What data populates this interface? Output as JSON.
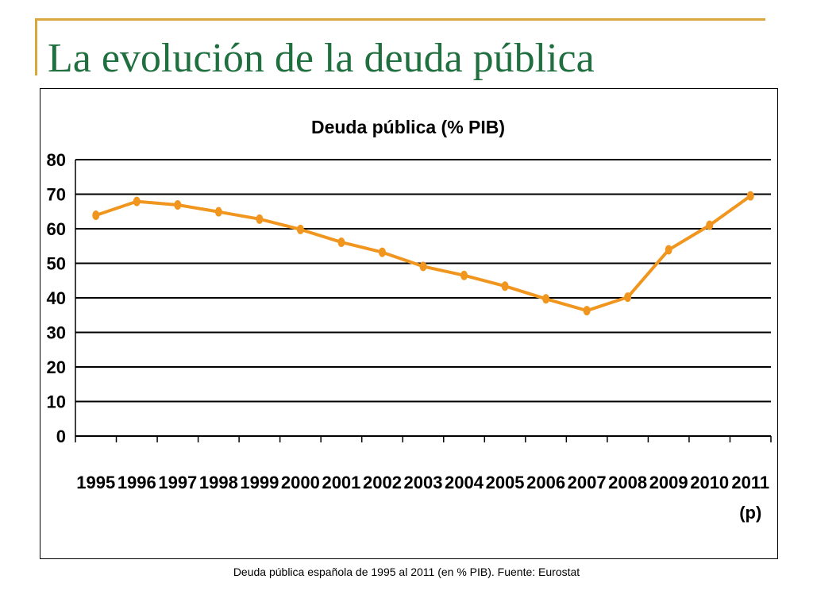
{
  "slide": {
    "title": "La evolución de la deuda pública",
    "caption": "Deuda pública española de 1995 al 2011 (en % PIB). Fuente: Eurostat"
  },
  "colors": {
    "accent": "#d9a83c",
    "title": "#1f6f3f",
    "series": "#f0961e"
  },
  "chart_data": {
    "type": "line",
    "title": "Deuda pública (% PIB)",
    "xlabel": "",
    "ylabel": "",
    "categories": [
      "1995",
      "1996",
      "1997",
      "1998",
      "1999",
      "2000",
      "2001",
      "2002",
      "2003",
      "2004",
      "2005",
      "2006",
      "2007",
      "2008",
      "2009",
      "2010",
      "2011"
    ],
    "category_sublabels": [
      "",
      "",
      "",
      "",
      "",
      "",
      "",
      "",
      "",
      "",
      "",
      "",
      "",
      "",
      "",
      "",
      "(p)"
    ],
    "series": [
      {
        "values": [
          63.9,
          67.9,
          66.9,
          64.9,
          62.8,
          59.8,
          56.1,
          53.2,
          49.1,
          46.5,
          43.4,
          39.7,
          36.3,
          40.2,
          53.9,
          61.0,
          69.5
        ]
      }
    ],
    "ylim": [
      0,
      80
    ],
    "yticks": [
      0,
      10,
      20,
      30,
      40,
      50,
      60,
      70,
      80
    ],
    "grid": true,
    "legend": "none"
  }
}
